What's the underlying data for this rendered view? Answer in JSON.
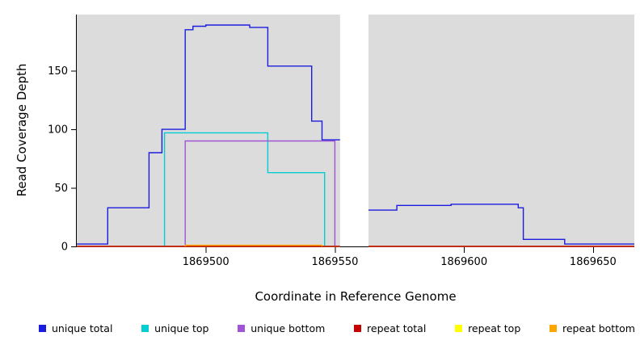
{
  "chart_data": {
    "type": "line",
    "step": true,
    "title": "",
    "xlabel": "Coordinate in Reference Genome",
    "ylabel": "Read Coverage Depth",
    "xlim": [
      1869450,
      1869666
    ],
    "ylim": [
      0,
      198
    ],
    "xticks": [
      1869500,
      1869550,
      1869600,
      1869650
    ],
    "yticks": [
      0,
      50,
      100,
      150
    ],
    "grid": false,
    "plot_background": "#dcdcdc",
    "gap_region": {
      "start": 1869552,
      "end": 1869563,
      "color": "#ffffff"
    },
    "legend_position": "bottom",
    "series": [
      {
        "name": "unique top",
        "color": "#00ced1",
        "segments": [
          [
            [
              1869450,
              0
            ],
            [
              1869484,
              97
            ],
            [
              1869524,
              63
            ],
            [
              1869546,
              0
            ],
            [
              1869552,
              0
            ]
          ],
          [
            [
              1869563,
              0
            ],
            [
              1869666,
              0
            ]
          ]
        ]
      },
      {
        "name": "unique bottom",
        "color": "#a055d5",
        "segments": [
          [
            [
              1869450,
              0
            ],
            [
              1869492,
              90
            ],
            [
              1869550,
              0
            ],
            [
              1869552,
              0
            ]
          ],
          [
            [
              1869563,
              0
            ],
            [
              1869666,
              0
            ]
          ]
        ]
      },
      {
        "name": "repeat top",
        "color": "#ffff00",
        "segments": [
          [
            [
              1869450,
              0
            ],
            [
              1869552,
              0
            ]
          ],
          [
            [
              1869563,
              0
            ],
            [
              1869666,
              0
            ]
          ]
        ]
      },
      {
        "name": "repeat total",
        "color": "#c40000",
        "segments": [
          [
            [
              1869450,
              0
            ],
            [
              1869552,
              0
            ]
          ],
          [
            [
              1869563,
              0
            ],
            [
              1869666,
              0
            ]
          ]
        ]
      },
      {
        "name": "repeat bottom",
        "color": "#ffa500",
        "segments": [
          [
            [
              1869492,
              0
            ],
            [
              1869492,
              1
            ],
            [
              1869545,
              1
            ],
            [
              1869545,
              0
            ]
          ]
        ]
      },
      {
        "name": "unique total",
        "color": "#1c1ce0",
        "segments": [
          [
            [
              1869450,
              2
            ],
            [
              1869462,
              33
            ],
            [
              1869478,
              80
            ],
            [
              1869483,
              100
            ],
            [
              1869492,
              185
            ],
            [
              1869495,
              188
            ],
            [
              1869500,
              189
            ],
            [
              1869517,
              187
            ],
            [
              1869524,
              154
            ],
            [
              1869541,
              107
            ],
            [
              1869545,
              91
            ],
            [
              1869552,
              91
            ]
          ],
          [
            [
              1869563,
              31
            ],
            [
              1869574,
              35
            ],
            [
              1869595,
              36
            ],
            [
              1869621,
              33
            ],
            [
              1869623,
              6
            ],
            [
              1869639,
              2
            ],
            [
              1869666,
              2
            ]
          ]
        ]
      }
    ],
    "legend": [
      {
        "label": "unique total",
        "color": "#1c1ce0"
      },
      {
        "label": "unique top",
        "color": "#00ced1"
      },
      {
        "label": "unique bottom",
        "color": "#a055d5"
      },
      {
        "label": "repeat total",
        "color": "#c40000"
      },
      {
        "label": "repeat top",
        "color": "#ffff00"
      },
      {
        "label": "repeat bottom",
        "color": "#ffa500"
      }
    ]
  }
}
